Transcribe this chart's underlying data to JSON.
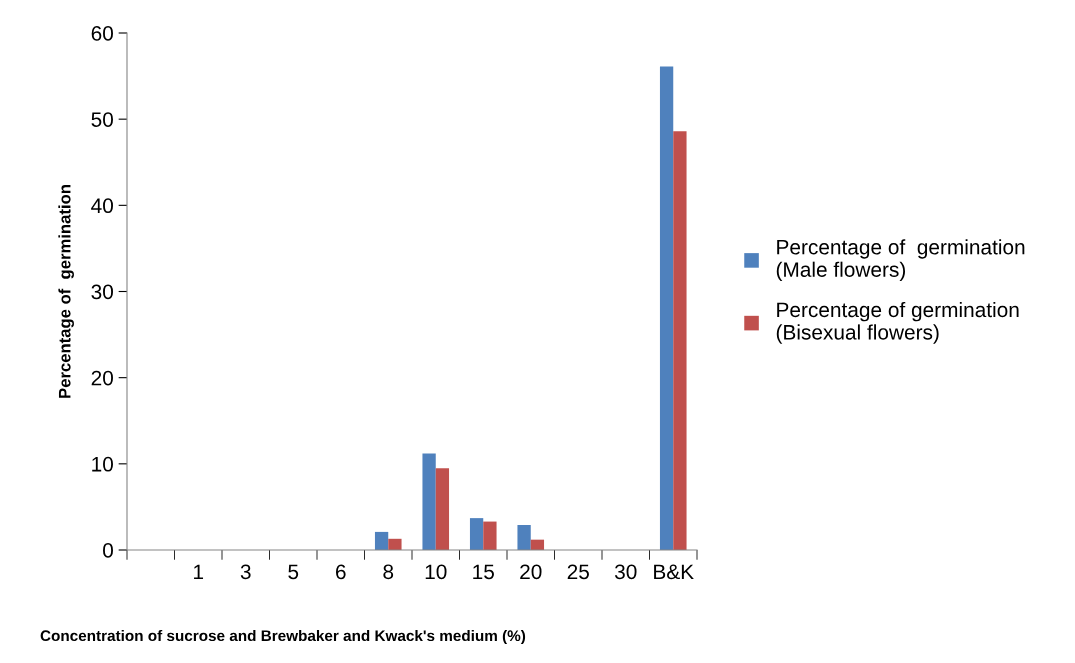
{
  "chart_data": {
    "type": "bar",
    "xlabel": "Concentration of sucrose and Brewbaker and Kwack's medium (%)",
    "ylabel": "Percentage of  germination",
    "categories": [
      null,
      "1",
      "3",
      "5",
      "6",
      "8",
      "10",
      "15",
      "20",
      "25",
      "30",
      "B&K"
    ],
    "series": [
      {
        "name": "Percentage of  germination\n(Male flowers)",
        "color": "#4f81bd",
        "values": [
          0,
          0,
          0,
          0,
          0,
          2.1,
          11.2,
          3.7,
          2.9,
          0,
          0,
          56.1
        ]
      },
      {
        "name": "Percentage of germination\n(Bisexual flowers)",
        "color": "#c0504d",
        "values": [
          0,
          0,
          0,
          0,
          0,
          1.3,
          9.5,
          3.3,
          1.2,
          0,
          0,
          48.6
        ]
      }
    ],
    "ylim": [
      0,
      60
    ],
    "yticks": [
      0,
      10,
      20,
      30,
      40,
      50,
      60
    ],
    "grid": false,
    "legend": "right"
  }
}
